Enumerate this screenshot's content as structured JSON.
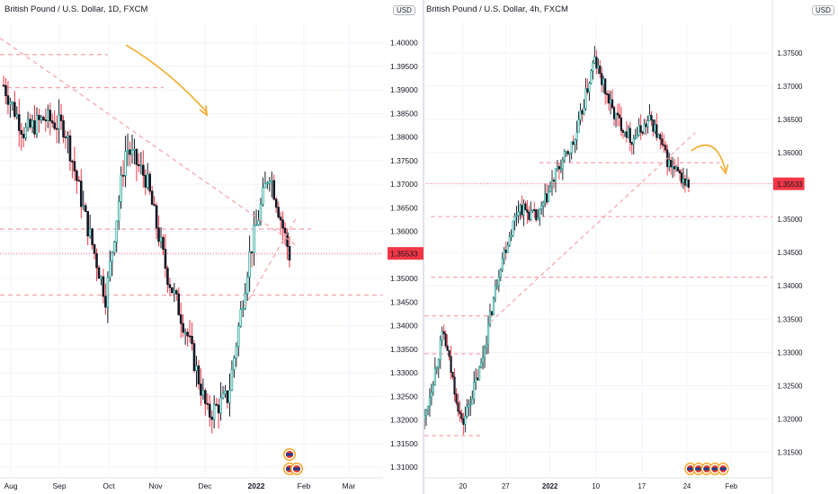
{
  "chart_data": [
    {
      "type": "candlestick",
      "title": "British Pound / U.S. Dollar, 1D, FXCM",
      "currency": "USD",
      "last_price_label": "1.35533",
      "y_ticks": [
        "1.40000",
        "1.39500",
        "1.39000",
        "1.38500",
        "1.38000",
        "1.37500",
        "1.37000",
        "1.36500",
        "1.36000",
        "1.35500",
        "1.35000",
        "1.34500",
        "1.34000",
        "1.33500",
        "1.33000",
        "1.32500",
        "1.32000",
        "1.31500",
        "1.31000"
      ],
      "x_ticks": [
        "Aug",
        "Sep",
        "Oct",
        "Nov",
        "Dec",
        "2022",
        "Feb",
        "Mar"
      ],
      "ylim": [
        1.3085,
        1.4045
      ],
      "price_path": [
        {
          "x": "Aug",
          "y": 1.391
        },
        {
          "x": "mid-Aug",
          "y": 1.381
        },
        {
          "x": "Sep",
          "y": 1.384
        },
        {
          "x": "Sep",
          "y": 1.382
        },
        {
          "x": "late Sep",
          "y": 1.363
        },
        {
          "x": "Oct",
          "y": 1.346
        },
        {
          "x": "mid-Oct",
          "y": 1.378
        },
        {
          "x": "Nov",
          "y": 1.371
        },
        {
          "x": "Nov",
          "y": 1.351
        },
        {
          "x": "mid-Nov",
          "y": 1.338
        },
        {
          "x": "Dec",
          "y": 1.321
        },
        {
          "x": "mid-Dec",
          "y": 1.325
        },
        {
          "x": "2022",
          "y": 1.354
        },
        {
          "x": "mid-Jan",
          "y": 1.373
        },
        {
          "x": "late Jan",
          "y": 1.355
        }
      ],
      "horizontal_levels": [
        1.3975,
        1.3905,
        1.3605,
        1.3465
      ],
      "currency_badges": 2
    },
    {
      "type": "candlestick",
      "title": "British Pound / U.S. Dollar, 4h, FXCM",
      "currency": "USD",
      "last_price_label": "1.35533",
      "y_ticks": [
        "1.37500",
        "1.37000",
        "1.36500",
        "1.36000",
        "1.35500",
        "1.35000",
        "1.34500",
        "1.34000",
        "1.33500",
        "1.33000",
        "1.32500",
        "1.32000",
        "1.31500"
      ],
      "x_ticks": [
        "20",
        "27",
        "2022",
        "10",
        "17",
        "24",
        "Feb"
      ],
      "ylim": [
        1.3117,
        1.3797
      ],
      "price_path": [
        {
          "x": "18",
          "y": 1.32
        },
        {
          "x": "20",
          "y": 1.333
        },
        {
          "x": "21",
          "y": 1.319
        },
        {
          "x": "24",
          "y": 1.328
        },
        {
          "x": "27",
          "y": 1.343
        },
        {
          "x": "29",
          "y": 1.352
        },
        {
          "x": "2022",
          "y": 1.35
        },
        {
          "x": "5",
          "y": 1.357
        },
        {
          "x": "10",
          "y": 1.362
        },
        {
          "x": "13",
          "y": 1.374
        },
        {
          "x": "15",
          "y": 1.366
        },
        {
          "x": "17",
          "y": 1.362
        },
        {
          "x": "20",
          "y": 1.365
        },
        {
          "x": "22",
          "y": 1.358
        },
        {
          "x": "24",
          "y": 1.355
        }
      ],
      "horizontal_levels": [
        1.3585,
        1.3504,
        1.3413,
        1.3355,
        1.3298,
        1.3175
      ],
      "currency_badges": 5
    }
  ],
  "colors": {
    "up": "#26a69a",
    "down": "#ef5350",
    "candle_body": "#131722",
    "candle_down_wick": "#f23645",
    "level_line": "#f7a1a8",
    "arrow": "#f5a623",
    "price_badge": "#f23645",
    "grid": "#f0f3fa"
  }
}
